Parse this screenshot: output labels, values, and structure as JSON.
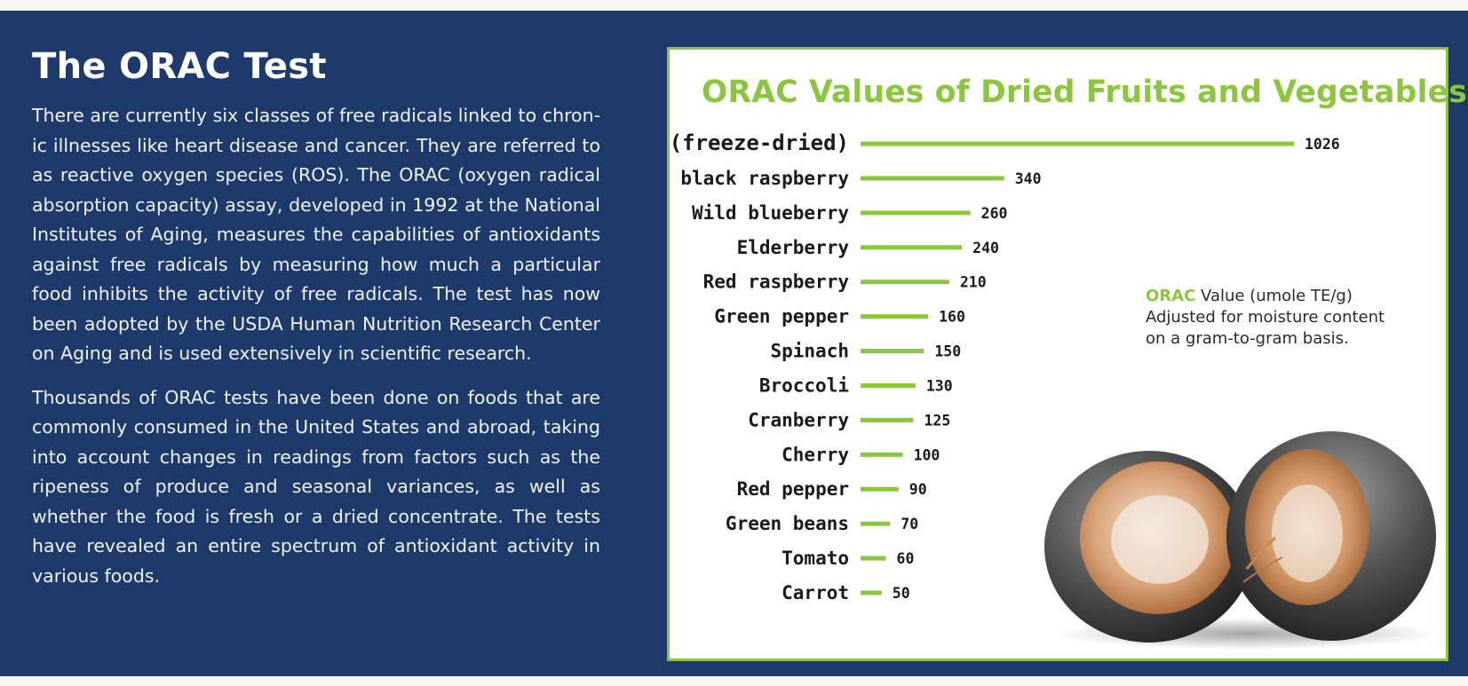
{
  "article": {
    "heading": "The ORAC Test",
    "paragraphs": [
      "There are currently six classes of free radicals linked to chron­ic illnesses like heart disease and cancer. They are referred to as reactive oxygen species (ROS). The ORAC (oxygen radical absorption capacity) assay, developed in 1992 at the National Institutes of Aging, measures the capabilities of antioxidants against free radicals by measuring how much a particular food inhibits the activity of free radicals. The test has now been adopted by the USDA Human Nutrition Research Cen­ter on Aging and is used extensively in scientific research.",
      "Thousands of ORAC tests have been done on foods that are commonly consumed in the United States and abroad, tak­ing into account changes in readings from factors such as the ripeness of produce and seasonal variances, as well as whether the food is fresh or a dried concentrate. The tests have revealed an entire spectrum of antioxidant activity in various foods."
    ]
  },
  "chart_data": {
    "type": "bar",
    "orientation": "horizontal",
    "title": "ORAC Values of Dried Fruits and Vegetables",
    "categories": [
      "Açai (freeze-dried)",
      "Wild black raspberry",
      "Wild blueberry",
      "Elderberry",
      "Red raspberry",
      "Green pepper",
      "Spinach",
      "Broccoli",
      "Cranberry",
      "Cherry",
      "Red pepper",
      "Green beans",
      "Tomato",
      "Carrot"
    ],
    "values": [
      1026,
      340,
      260,
      240,
      210,
      160,
      150,
      130,
      125,
      100,
      90,
      70,
      60,
      50
    ],
    "data_labels": true,
    "grid": false,
    "bar_color": "#8cc63f",
    "note": {
      "highlight": "ORAC",
      "line1_rest": " Value (umole TE/g)",
      "line2": "Adjusted for moisture content",
      "line3": "on a gram-to-gram basis."
    }
  },
  "colors": {
    "panel_background": "#1d3a6b",
    "accent_green": "#8cc63f",
    "text_dark": "#1b1b1b"
  }
}
